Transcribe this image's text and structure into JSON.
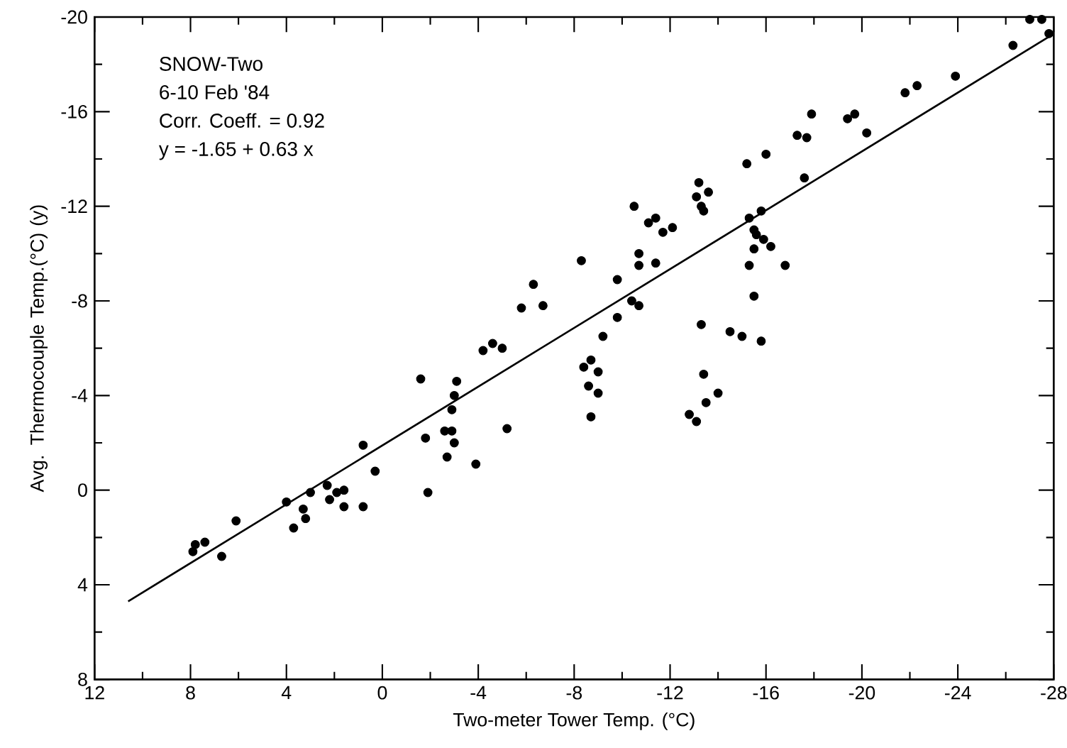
{
  "chart_data": {
    "type": "scatter",
    "xlabel": "Two-meter Tower Temp. (°C)",
    "ylabel": "Avg. Thermocouple Temp.(°C) (y)",
    "annotations": [
      "SNOW-Two",
      "6-10 Feb '84",
      "Corr. Coeff. = 0.92",
      "y = -1.65 + 0.63 x"
    ],
    "xlim": [
      12,
      -28
    ],
    "xticks": [
      12,
      8,
      4,
      0,
      -4,
      -8,
      -12,
      -16,
      -20,
      -24,
      -28
    ],
    "ylim": [
      8,
      -20
    ],
    "yticks": [
      8,
      4,
      0,
      -4,
      -8,
      -12,
      -16,
      -20
    ],
    "series": [
      {
        "color": "#000000",
        "marker": "circle",
        "x": [
          7.9,
          7.8,
          7.4,
          6.7,
          6.1,
          4.0,
          3.7,
          3.3,
          3.2,
          3.0,
          2.3,
          2.2,
          1.9,
          1.6,
          1.6,
          0.8,
          0.8,
          0.3,
          -1.6,
          -3.1,
          -3.0,
          -2.9,
          -1.8,
          -2.6,
          -2.9,
          -3.0,
          -2.7,
          -1.9,
          -3.9,
          -5.2,
          -4.2,
          -4.6,
          -5.0,
          -5.8,
          -6.3,
          -6.7,
          -8.3,
          -8.4,
          -8.7,
          -9.0,
          -8.6,
          -9.0,
          -8.7,
          -9.2,
          -9.8,
          -9.8,
          -10.4,
          -10.7,
          -10.5,
          -11.1,
          -11.4,
          -11.7,
          -12.1,
          -10.7,
          -10.7,
          -11.4,
          -13.2,
          -13.6,
          -13.1,
          -13.3,
          -13.4,
          -13.3,
          -13.4,
          -14.0,
          -13.5,
          -12.8,
          -13.1,
          -14.5,
          -15.0,
          -15.8,
          -15.2,
          -16.0,
          -17.6,
          -15.3,
          -15.8,
          -15.5,
          -15.6,
          -15.9,
          -16.2,
          -15.5,
          -15.3,
          -16.8,
          -15.5,
          -17.9,
          -17.3,
          -17.7,
          -19.4,
          -19.7,
          -20.2,
          -21.8,
          -22.3,
          -23.9,
          -26.3,
          -27.0,
          -27.5,
          -27.8
        ],
        "values": [
          2.6,
          2.3,
          2.2,
          2.8,
          1.3,
          0.5,
          1.6,
          0.8,
          1.2,
          0.1,
          -0.2,
          0.4,
          0.1,
          0.0,
          0.7,
          0.7,
          -1.9,
          -0.8,
          -4.7,
          -4.6,
          -4.0,
          -3.4,
          -2.2,
          -2.5,
          -2.5,
          -2.0,
          -1.4,
          0.1,
          -1.1,
          -2.6,
          -5.9,
          -6.2,
          -6.0,
          -7.7,
          -8.7,
          -7.8,
          -9.7,
          -5.2,
          -5.5,
          -5.0,
          -4.4,
          -4.1,
          -3.1,
          -6.5,
          -7.3,
          -8.9,
          -8.0,
          -7.8,
          -12.0,
          -11.3,
          -11.5,
          -10.9,
          -11.1,
          -10.0,
          -9.5,
          -9.6,
          -13.0,
          -12.6,
          -12.4,
          -12.0,
          -11.8,
          -7.0,
          -4.9,
          -4.1,
          -3.7,
          -3.2,
          -2.9,
          -6.7,
          -6.5,
          -6.3,
          -13.8,
          -14.2,
          -13.2,
          -11.5,
          -11.8,
          -11.0,
          -10.8,
          -10.6,
          -10.3,
          -10.2,
          -9.5,
          -9.5,
          -8.2,
          -15.9,
          -15.0,
          -14.9,
          -15.7,
          -15.9,
          -15.1,
          -16.8,
          -17.1,
          -17.5,
          -18.8,
          -19.9,
          -19.9,
          -19.3
        ]
      },
      {
        "type": "line",
        "color": "#000000",
        "marker": "none",
        "line_style": "solid",
        "x": [
          10.6,
          -28
        ],
        "values": [
          4.7,
          -19.29
        ]
      }
    ]
  }
}
